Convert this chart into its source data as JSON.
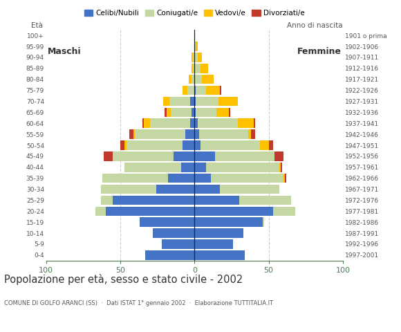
{
  "age_groups": [
    "0-4",
    "5-9",
    "10-14",
    "15-19",
    "20-24",
    "25-29",
    "30-34",
    "35-39",
    "40-44",
    "45-49",
    "50-54",
    "55-59",
    "60-64",
    "65-69",
    "70-74",
    "75-79",
    "80-84",
    "85-89",
    "90-94",
    "95-99",
    "100+"
  ],
  "birth_years": [
    "1997-2001",
    "1992-1996",
    "1987-1991",
    "1982-1986",
    "1977-1981",
    "1972-1976",
    "1967-1971",
    "1962-1966",
    "1957-1961",
    "1952-1956",
    "1947-1951",
    "1942-1946",
    "1937-1941",
    "1932-1936",
    "1927-1931",
    "1922-1926",
    "1917-1921",
    "1912-1916",
    "1907-1911",
    "1902-1906",
    "1901 o prima"
  ],
  "males": {
    "celibe": [
      33,
      22,
      28,
      37,
      60,
      55,
      26,
      18,
      9,
      14,
      8,
      6,
      3,
      2,
      3,
      0,
      0,
      0,
      0,
      0,
      0
    ],
    "coniugato": [
      0,
      0,
      0,
      0,
      7,
      8,
      37,
      44,
      38,
      41,
      38,
      34,
      27,
      14,
      14,
      5,
      2,
      1,
      1,
      0,
      0
    ],
    "vedovo": [
      0,
      0,
      0,
      0,
      0,
      0,
      0,
      0,
      0,
      0,
      1,
      1,
      4,
      3,
      4,
      3,
      2,
      1,
      1,
      0,
      0
    ],
    "divorziato": [
      0,
      0,
      0,
      0,
      0,
      0,
      0,
      0,
      0,
      6,
      3,
      3,
      1,
      1,
      0,
      0,
      0,
      0,
      0,
      0,
      0
    ]
  },
  "females": {
    "nubile": [
      34,
      26,
      33,
      46,
      53,
      30,
      17,
      11,
      8,
      14,
      4,
      3,
      2,
      1,
      1,
      1,
      0,
      0,
      0,
      0,
      0
    ],
    "coniugata": [
      0,
      0,
      0,
      1,
      15,
      35,
      40,
      49,
      49,
      40,
      40,
      33,
      27,
      14,
      15,
      7,
      5,
      4,
      2,
      1,
      0
    ],
    "vedova": [
      0,
      0,
      0,
      0,
      0,
      0,
      0,
      1,
      1,
      0,
      6,
      2,
      11,
      8,
      13,
      9,
      8,
      5,
      3,
      1,
      0
    ],
    "divorziata": [
      0,
      0,
      0,
      0,
      0,
      0,
      0,
      1,
      1,
      6,
      3,
      3,
      1,
      1,
      0,
      1,
      0,
      0,
      0,
      0,
      0
    ]
  },
  "colors": {
    "celibe": "#4472c4",
    "coniugato": "#c5d8a4",
    "vedovo": "#ffc000",
    "divorziato": "#c0392b"
  },
  "xlim": 100,
  "title": "Popolazione per età, sesso e stato civile - 2002",
  "subtitle": "COMUNE DI GOLFO ARANCI (SS)  ·  Dati ISTAT 1° gennaio 2002  ·  Elaborazione TUTTITALIA.IT",
  "legend_labels": [
    "Celibi/Nubili",
    "Coniugati/e",
    "Vedovi/e",
    "Divorziati/e"
  ],
  "bg_color": "#ffffff",
  "grid_color": "#cccccc",
  "axis_tick_color": "#4a7c4e",
  "bar_height": 0.85
}
